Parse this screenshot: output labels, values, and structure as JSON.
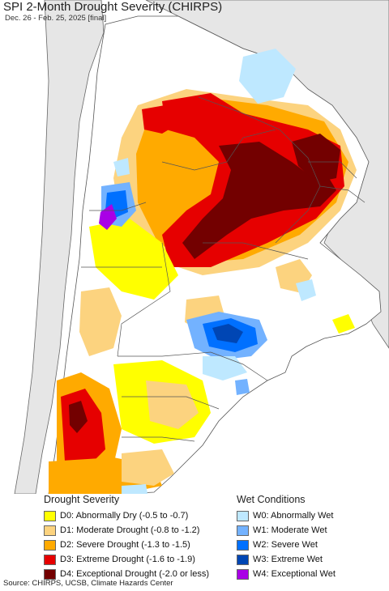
{
  "title": "SPI 2-Month Drought Severity (CHIRPS)",
  "subtitle": "Dec. 26 - Feb. 25, 2025 [final]",
  "legend": {
    "drought_heading": "Drought Severity",
    "wet_heading": "Wet Conditions",
    "drought": [
      {
        "label": "D0: Abnormally Dry (-0.5 to -0.7)",
        "color": "#ffff00"
      },
      {
        "label": "D1: Moderate Drought (-0.8 to -1.2)",
        "color": "#fcd37f"
      },
      {
        "label": "D2: Severe Drought (-1.3 to -1.5)",
        "color": "#ffaa00"
      },
      {
        "label": "D3: Extreme Drought (-1.6 to -1.9)",
        "color": "#e60000"
      },
      {
        "label": "D4: Exceptional Drought (-2.0 or less)",
        "color": "#730000"
      }
    ],
    "wet": [
      {
        "label": "W0: Abnormally Wet",
        "color": "#bee8ff"
      },
      {
        "label": "W1: Moderate Wet",
        "color": "#73b2ff"
      },
      {
        "label": "W2: Severe Wet",
        "color": "#0070ff"
      },
      {
        "label": "W3: Extreme Wet",
        "color": "#0046b4"
      },
      {
        "label": "W4: Exceptional Wet",
        "color": "#a900e6"
      }
    ]
  },
  "source": "Source: CHIRPS, UCSB, Climate Hazards Center",
  "colors": {
    "ocean": "#ffffff",
    "outside_land": "#e6e6e6",
    "border": "#666666"
  }
}
